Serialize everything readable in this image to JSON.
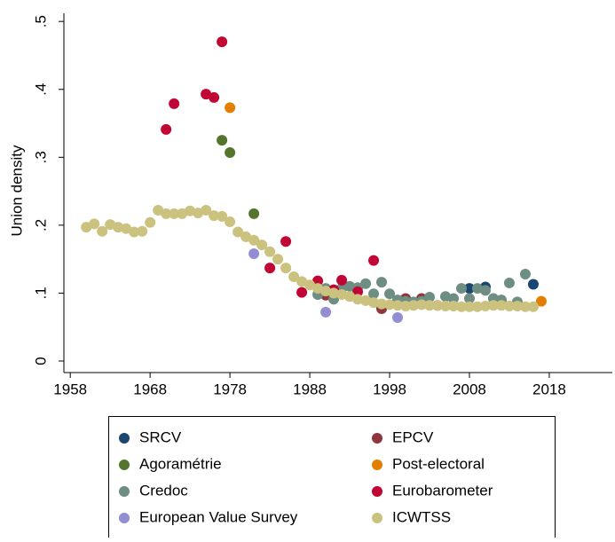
{
  "chart_data": {
    "type": "scatter",
    "y_label": "Union density",
    "xlim": [
      1957.2,
      2025.9
    ],
    "ylim": [
      -0.017,
      0.512
    ],
    "xticks": [
      1958,
      1968,
      1978,
      1988,
      1998,
      2008,
      2018
    ],
    "yticks": [
      0,
      {
        "value": 0.1,
        "label": ".1"
      },
      {
        "value": 0.2,
        "label": ".2"
      },
      {
        "value": 0.3,
        "label": ".3"
      },
      {
        "value": 0.4,
        "label": ".4"
      },
      {
        "value": 0.5,
        "label": ".5"
      }
    ],
    "grid": false,
    "legend": "bottom",
    "series": [
      {
        "name": "SRCV",
        "color": "#1a476f",
        "x": [
          2008,
          2010,
          2016
        ],
        "values": [
          0.107,
          0.109,
          0.113
        ]
      },
      {
        "name": "EPCV",
        "color": "#90353b",
        "x": [
          1990,
          1997,
          2000,
          2002,
          2004
        ],
        "values": [
          0.097,
          0.077,
          0.092,
          0.092,
          0.082
        ]
      },
      {
        "name": "Agoramétrie",
        "color": "#55752f",
        "x": [
          1977,
          1978,
          1981
        ],
        "values": [
          0.325,
          0.307,
          0.217
        ]
      },
      {
        "name": "Post-electoral",
        "color": "#e37e00",
        "x": [
          1978,
          2017
        ],
        "values": [
          0.373,
          0.088
        ]
      },
      {
        "name": "Credoc",
        "color": "#6e8e84",
        "x": [
          1989,
          1990,
          1991,
          1992,
          1993,
          1994,
          1995,
          1996,
          1997,
          1998,
          1999,
          2000,
          2001,
          2002,
          2003,
          2005,
          2006,
          2007,
          2008,
          2009,
          2010,
          2011,
          2012,
          2013,
          2014,
          2015
        ],
        "values": [
          0.098,
          0.107,
          0.091,
          0.107,
          0.11,
          0.108,
          0.114,
          0.099,
          0.116,
          0.099,
          0.09,
          0.088,
          0.087,
          0.088,
          0.094,
          0.095,
          0.092,
          0.107,
          0.092,
          0.107,
          0.104,
          0.092,
          0.09,
          0.115,
          0.087,
          0.128
        ]
      },
      {
        "name": "Eurobarometer",
        "color": "#c10534",
        "x": [
          1970,
          1971,
          1975,
          1976,
          1977,
          1983,
          1985,
          1987,
          1989,
          1991,
          1992,
          1994,
          1996
        ],
        "values": [
          0.341,
          0.379,
          0.393,
          0.388,
          0.47,
          0.137,
          0.176,
          0.101,
          0.118,
          0.105,
          0.119,
          0.102,
          0.148
        ]
      },
      {
        "name": "European Value Survey",
        "color": "#938dd2",
        "x": [
          1981,
          1990,
          1999
        ],
        "values": [
          0.158,
          0.072,
          0.064
        ]
      },
      {
        "name": "ICWTSS",
        "color": "#cac27e",
        "x": [
          1960,
          1961,
          1962,
          1963,
          1964,
          1965,
          1966,
          1967,
          1968,
          1969,
          1970,
          1971,
          1972,
          1973,
          1974,
          1975,
          1976,
          1977,
          1978,
          1979,
          1980,
          1981,
          1982,
          1983,
          1984,
          1985,
          1986,
          1987,
          1988,
          1989,
          1990,
          1991,
          1992,
          1993,
          1994,
          1995,
          1996,
          1997,
          1998,
          1999,
          2000,
          2001,
          2002,
          2003,
          2004,
          2005,
          2006,
          2007,
          2008,
          2009,
          2010,
          2011,
          2012,
          2013,
          2014,
          2015,
          2016
        ],
        "values": [
          0.197,
          0.202,
          0.191,
          0.201,
          0.197,
          0.195,
          0.19,
          0.191,
          0.204,
          0.222,
          0.217,
          0.217,
          0.217,
          0.221,
          0.218,
          0.222,
          0.214,
          0.213,
          0.205,
          0.19,
          0.183,
          0.178,
          0.171,
          0.161,
          0.15,
          0.137,
          0.124,
          0.117,
          0.112,
          0.107,
          0.103,
          0.1,
          0.098,
          0.095,
          0.091,
          0.089,
          0.086,
          0.084,
          0.083,
          0.082,
          0.081,
          0.082,
          0.083,
          0.082,
          0.082,
          0.081,
          0.081,
          0.08,
          0.08,
          0.08,
          0.081,
          0.082,
          0.082,
          0.081,
          0.081,
          0.08,
          0.08
        ]
      }
    ]
  }
}
